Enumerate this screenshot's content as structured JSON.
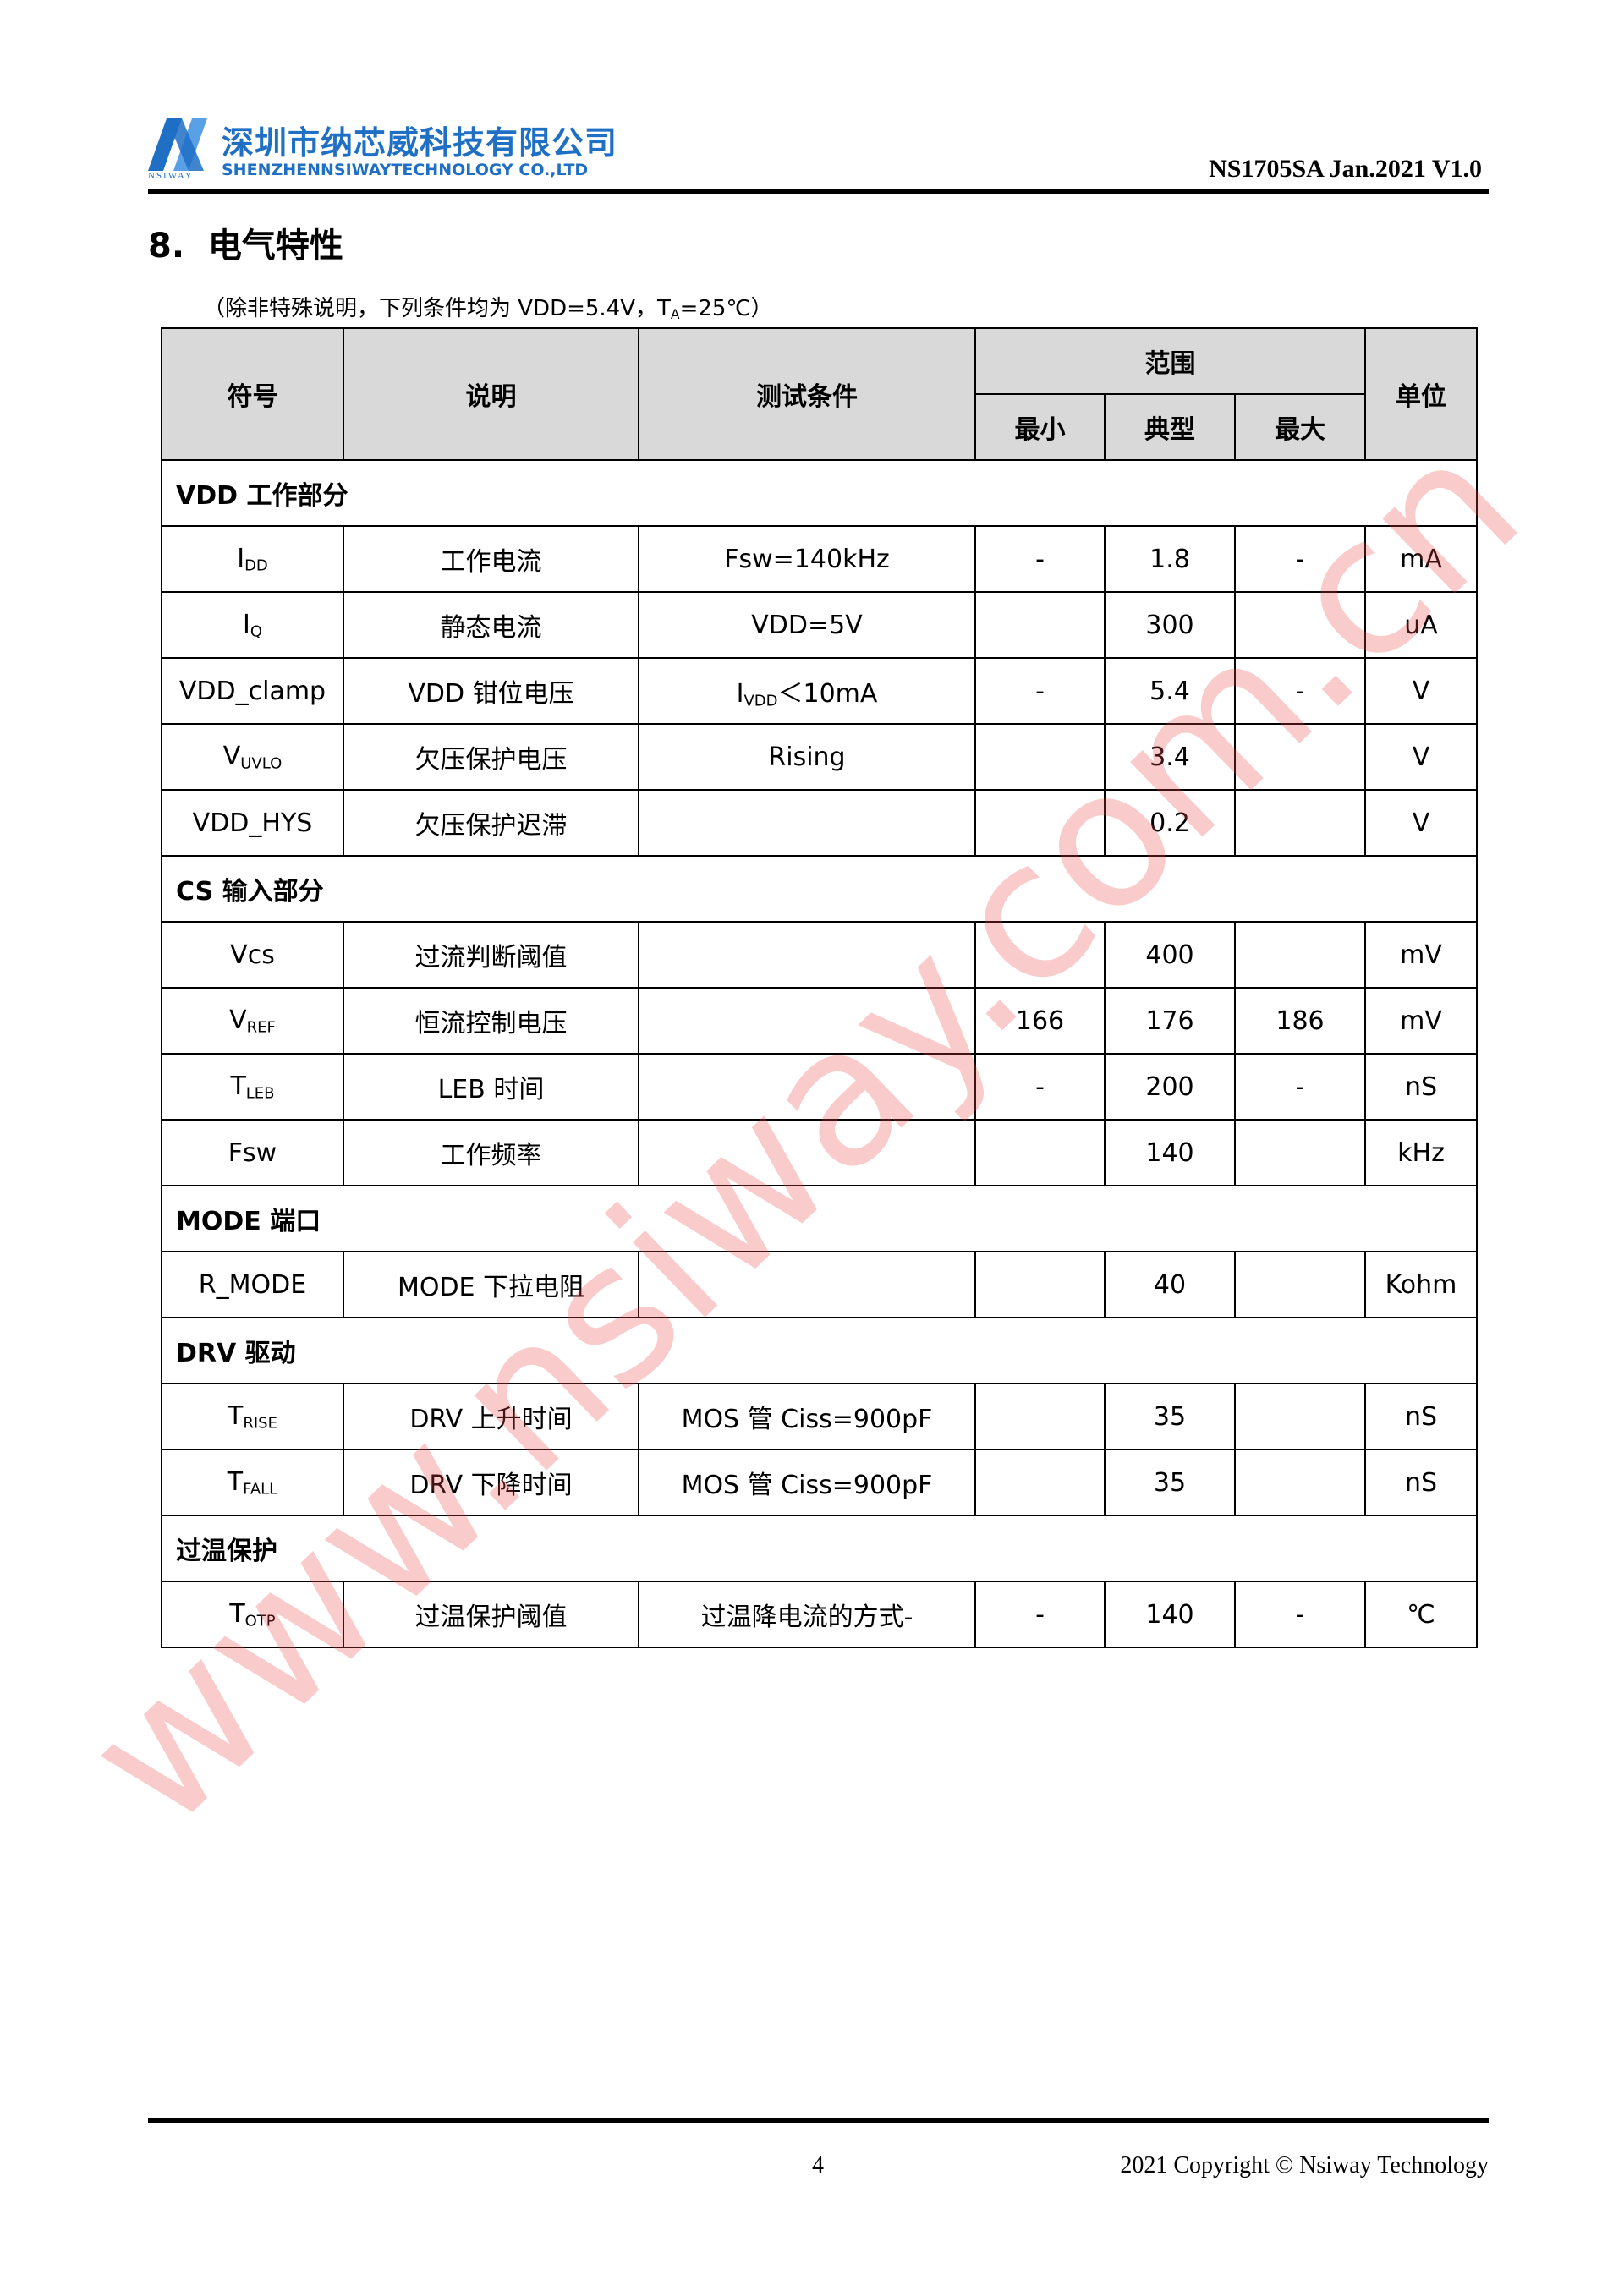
{
  "header": {
    "logo_text": "NSIWAY",
    "company_cn": "深圳市纳芯威科技有限公司",
    "company_en": "SHENZHENNSIWAYTECHNOLOGY CO.,LTD",
    "doc_id": "NS1705SA Jan.2021 V1.0"
  },
  "section": {
    "title": "8.  电气特性",
    "note": {
      "text": "（除非特殊说明，下列条件均为 VDD=5.4V，T",
      "sub": "A",
      "after": "=25℃）"
    }
  },
  "table": {
    "header": {
      "symbol": "符号",
      "description": "说明",
      "condition": "测试条件",
      "range": "范围",
      "min": "最小",
      "typ": "典型",
      "max": "最大",
      "unit": "单位"
    },
    "groups": [
      {
        "title": "VDD  工作部分",
        "rows": [
          [
            {
              "text": "I",
              "sub": "DD"
            },
            "工作电流",
            "Fsw=140kHz",
            "-",
            "1.8",
            "-",
            "mA"
          ],
          [
            {
              "text": "I",
              "sub": "Q"
            },
            "静态电流",
            "VDD=5V",
            null,
            "300",
            null,
            "uA"
          ],
          [
            "VDD_clamp",
            "VDD  钳位电压",
            {
              "text": "I",
              "sub": "VDD",
              "after": "＜10mA"
            },
            "-",
            "5.4",
            "-",
            "V"
          ],
          [
            {
              "text": "V",
              "sub": "UVLO"
            },
            "欠压保护电压",
            "Rising",
            null,
            "3.4",
            null,
            "V"
          ],
          [
            "VDD_HYS",
            "欠压保护迟滞",
            null,
            null,
            "0.2",
            null,
            "V"
          ]
        ]
      },
      {
        "title": "CS  输入部分",
        "rows": [
          [
            "Vcs",
            "过流判断阈值",
            null,
            null,
            "400",
            null,
            "mV"
          ],
          [
            {
              "text": "V",
              "sub": "REF"
            },
            "恒流控制电压",
            null,
            "166",
            "176",
            "186",
            "mV"
          ],
          [
            {
              "text": "T",
              "sub": "LEB"
            },
            "LEB  时间",
            null,
            "-",
            "200",
            "-",
            "nS"
          ],
          [
            "Fsw",
            "工作频率",
            null,
            null,
            "140",
            null,
            "kHz"
          ]
        ]
      },
      {
        "title": "MODE 端口",
        "rows": [
          [
            "R_MODE",
            "MODE 下拉电阻",
            null,
            null,
            "40",
            null,
            "Kohm"
          ]
        ]
      },
      {
        "title": "DRV 驱动",
        "rows": [
          [
            {
              "text": "T",
              "sub": "RISE"
            },
            "DRV 上升时间",
            "MOS 管 Ciss=900pF",
            null,
            "35",
            null,
            "nS"
          ],
          [
            {
              "text": "T",
              "sub": "FALL"
            },
            "DRV 下降时间",
            "MOS 管 Ciss=900pF",
            null,
            "35",
            null,
            "nS"
          ]
        ]
      },
      {
        "title": "过温保护",
        "rows": [
          [
            {
              "text": "T",
              "sub": "OTP"
            },
            "过温保护阈值",
            "过温降电流的方式-",
            "-",
            "140",
            "-",
            "℃"
          ]
        ]
      }
    ]
  },
  "watermark": "www.nsiway.com.cn",
  "footer": {
    "page": "4",
    "copyright": "2021 Copyright © Nsiway Technology"
  }
}
